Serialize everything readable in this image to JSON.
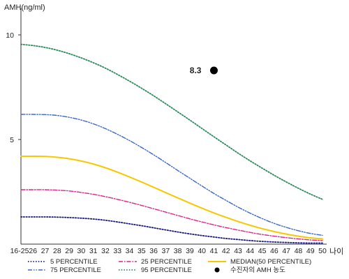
{
  "chart_data": {
    "type": "line",
    "ylabel": "AMH(ng/ml)",
    "xlabel": "나이",
    "categories": [
      "16-25",
      "26",
      "27",
      "28",
      "29",
      "30",
      "31",
      "32",
      "33",
      "34",
      "35",
      "36",
      "37",
      "38",
      "39",
      "40",
      "41",
      "42",
      "43",
      "44",
      "45",
      "46",
      "47",
      "48",
      "49",
      "50"
    ],
    "ylim": [
      0,
      10.5
    ],
    "yticks": [
      5,
      10
    ],
    "series": [
      {
        "name": "5 PERCENTILE",
        "color": "#1a1a80",
        "dash": "dot",
        "values": [
          1.3,
          1.3,
          1.3,
          1.29,
          1.27,
          1.24,
          1.2,
          1.14,
          1.06,
          0.97,
          0.88,
          0.78,
          0.68,
          0.58,
          0.49,
          0.41,
          0.34,
          0.27,
          0.22,
          0.17,
          0.13,
          0.1,
          0.08,
          0.06,
          0.05,
          0.05
        ]
      },
      {
        "name": "25 PERCENTILE",
        "color": "#e0248a",
        "dash": "dashdot",
        "values": [
          2.6,
          2.6,
          2.6,
          2.58,
          2.54,
          2.47,
          2.38,
          2.27,
          2.14,
          2.0,
          1.85,
          1.69,
          1.53,
          1.37,
          1.21,
          1.06,
          0.92,
          0.79,
          0.67,
          0.56,
          0.46,
          0.38,
          0.31,
          0.25,
          0.2,
          0.17
        ]
      },
      {
        "name": "MEDIAN(50 PERCENTILE)",
        "color": "#f5c800",
        "dash": "solid",
        "values": [
          4.2,
          4.2,
          4.19,
          4.15,
          4.08,
          3.97,
          3.83,
          3.65,
          3.44,
          3.21,
          2.97,
          2.72,
          2.46,
          2.21,
          1.96,
          1.72,
          1.49,
          1.28,
          1.08,
          0.9,
          0.74,
          0.6,
          0.48,
          0.38,
          0.3,
          0.25
        ]
      },
      {
        "name": "75 PERCENTILE",
        "color": "#3a66c9",
        "dash": "dashdotdot",
        "values": [
          6.2,
          6.2,
          6.19,
          6.15,
          6.06,
          5.93,
          5.75,
          5.52,
          5.25,
          4.95,
          4.62,
          4.27,
          3.9,
          3.52,
          3.15,
          2.78,
          2.42,
          2.09,
          1.77,
          1.48,
          1.22,
          0.99,
          0.8,
          0.64,
          0.51,
          0.42
        ]
      },
      {
        "name": "95 PERCENTILE",
        "color": "#2a8a5a",
        "dash": "dot",
        "values": [
          9.55,
          9.49,
          9.4,
          9.27,
          9.1,
          8.9,
          8.67,
          8.41,
          8.11,
          7.79,
          7.45,
          7.09,
          6.71,
          6.32,
          5.93,
          5.53,
          5.13,
          4.74,
          4.35,
          3.98,
          3.63,
          3.29,
          2.97,
          2.67,
          2.39,
          2.14
        ]
      }
    ],
    "highlight": {
      "name": "수진자의 AMH 농도",
      "x": "41",
      "value": 8.3,
      "label": "8.3",
      "color": "#000000"
    },
    "legend_position": "bottom",
    "grid": false
  }
}
